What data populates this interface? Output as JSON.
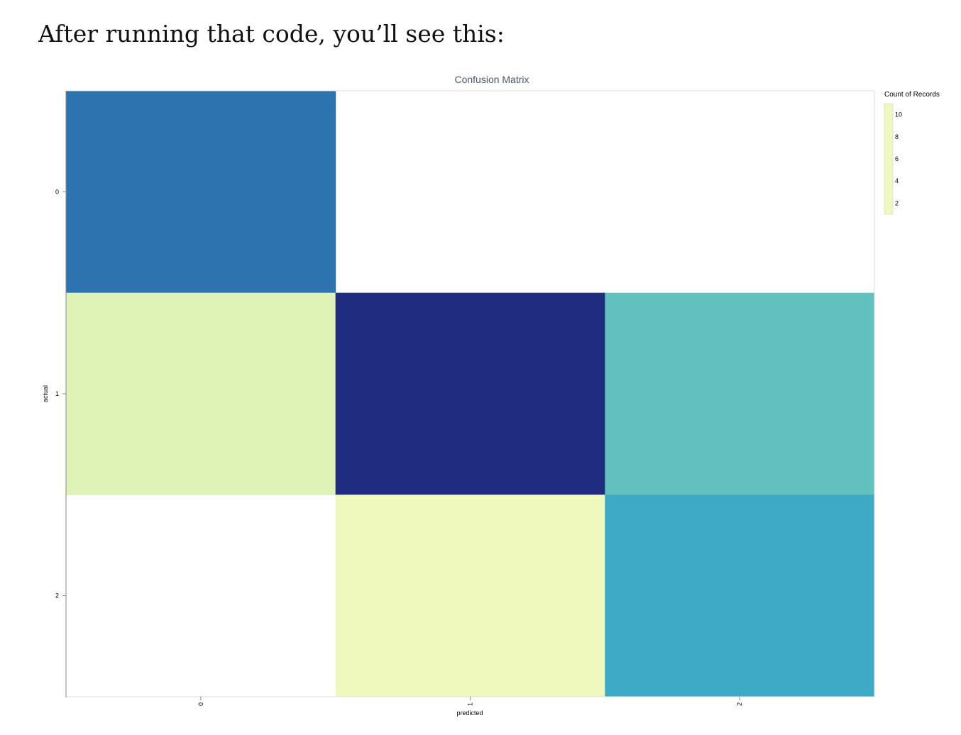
{
  "page": {
    "heading": "After running that code, you’ll see this:"
  },
  "chart_data": {
    "type": "heatmap",
    "title": "Confusion Matrix",
    "xlabel": "predicted",
    "ylabel": "actual",
    "x_categories": [
      "0",
      "1",
      "2"
    ],
    "y_categories": [
      "0",
      "1",
      "2"
    ],
    "cells": [
      {
        "actual": "0",
        "predicted": "0",
        "count": 8
      },
      {
        "actual": "1",
        "predicted": "0",
        "count": 2
      },
      {
        "actual": "1",
        "predicted": "1",
        "count": 11
      },
      {
        "actual": "1",
        "predicted": "2",
        "count": 5
      },
      {
        "actual": "2",
        "predicted": "1",
        "count": 1
      },
      {
        "actual": "2",
        "predicted": "2",
        "count": 6
      }
    ],
    "legend": {
      "title": "Count of Records",
      "ticks": [
        2,
        4,
        6,
        8,
        10
      ],
      "domain": [
        1,
        11
      ],
      "placement": "right"
    },
    "colors": {
      "scale": [
        "#eff9bd",
        "#dbf1b4",
        "#aadeb6",
        "#6bc5be",
        "#3eaac5",
        "#2a8ab9",
        "#2d63a8",
        "#243d93",
        "#1f2c80"
      ],
      "title_color": "#4c566a",
      "grid": "#dddddd",
      "axis": "#888888"
    }
  }
}
